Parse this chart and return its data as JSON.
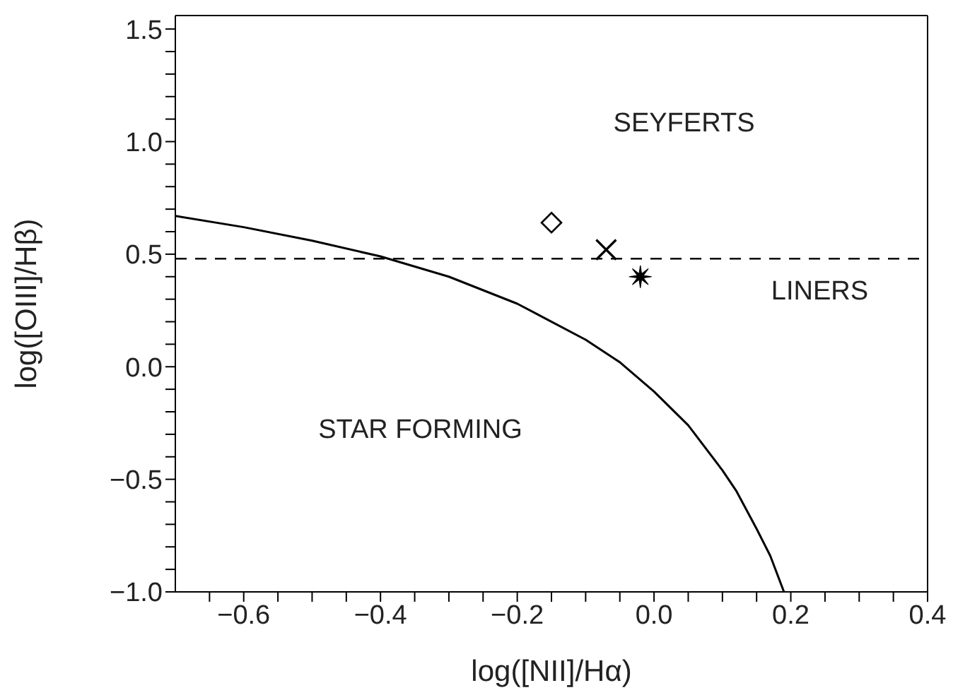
{
  "chart_data": {
    "type": "scatter",
    "xlabel": "log([NII]/Hα)",
    "ylabel": "log([OIII]/Hβ)",
    "xlim": [
      -0.7,
      0.4
    ],
    "ylim": [
      -1.0,
      1.56
    ],
    "xticks": [
      {
        "value": -0.65,
        "label": null
      },
      {
        "value": -0.6,
        "label": "−0.6"
      },
      {
        "value": -0.55,
        "label": null
      },
      {
        "value": -0.5,
        "label": null
      },
      {
        "value": -0.45,
        "label": null
      },
      {
        "value": -0.4,
        "label": "−0.4"
      },
      {
        "value": -0.35,
        "label": null
      },
      {
        "value": -0.3,
        "label": null
      },
      {
        "value": -0.25,
        "label": null
      },
      {
        "value": -0.2,
        "label": "−0.2"
      },
      {
        "value": -0.15,
        "label": null
      },
      {
        "value": -0.1,
        "label": null
      },
      {
        "value": -0.05,
        "label": null
      },
      {
        "value": 0,
        "label": "0.0"
      },
      {
        "value": 0.05,
        "label": null
      },
      {
        "value": 0.1,
        "label": null
      },
      {
        "value": 0.15,
        "label": null
      },
      {
        "value": 0.2,
        "label": "0.2"
      },
      {
        "value": 0.25,
        "label": null
      },
      {
        "value": 0.3,
        "label": null
      },
      {
        "value": 0.35,
        "label": null
      },
      {
        "value": 0.4,
        "label": "0.4"
      }
    ],
    "yticks": [
      {
        "value": -1.0,
        "label": "−1.0"
      },
      {
        "value": -0.9,
        "label": null
      },
      {
        "value": -0.8,
        "label": null
      },
      {
        "value": -0.7,
        "label": null
      },
      {
        "value": -0.6,
        "label": null
      },
      {
        "value": -0.5,
        "label": "−0.5"
      },
      {
        "value": -0.4,
        "label": null
      },
      {
        "value": -0.3,
        "label": null
      },
      {
        "value": -0.2,
        "label": null
      },
      {
        "value": -0.1,
        "label": null
      },
      {
        "value": 0,
        "label": "0.0"
      },
      {
        "value": 0.1,
        "label": null
      },
      {
        "value": 0.2,
        "label": null
      },
      {
        "value": 0.3,
        "label": null
      },
      {
        "value": 0.4,
        "label": null
      },
      {
        "value": 0.5,
        "label": "0.5"
      },
      {
        "value": 0.6,
        "label": null
      },
      {
        "value": 0.7,
        "label": null
      },
      {
        "value": 0.8,
        "label": null
      },
      {
        "value": 0.9,
        "label": null
      },
      {
        "value": 1.0,
        "label": "1.0"
      },
      {
        "value": 1.1,
        "label": null
      },
      {
        "value": 1.2,
        "label": null
      },
      {
        "value": 1.3,
        "label": null
      },
      {
        "value": 1.4,
        "label": null
      },
      {
        "value": 1.5,
        "label": "1.5"
      }
    ],
    "grid": false,
    "legend": false,
    "series": [
      {
        "type": "line",
        "color": "#000000",
        "line_style": "solid",
        "marker": "none",
        "x": [
          -0.7,
          -0.6,
          -0.5,
          -0.4,
          -0.3,
          -0.2,
          -0.1,
          -0.05,
          0.0,
          0.05,
          0.1,
          0.12,
          0.15,
          0.17,
          0.19
        ],
        "values": [
          0.67,
          0.62,
          0.56,
          0.49,
          0.4,
          0.28,
          0.12,
          0.02,
          -0.11,
          -0.26,
          -0.46,
          -0.55,
          -0.72,
          -0.84,
          -1.0
        ]
      },
      {
        "color": "#000000",
        "marker": "diamond",
        "x": [
          -0.15
        ],
        "values": [
          0.64
        ]
      },
      {
        "color": "#000000",
        "marker": "cross",
        "x": [
          -0.07
        ],
        "values": [
          0.52
        ]
      },
      {
        "color": "#000000",
        "marker": "star",
        "x": [
          -0.02
        ],
        "values": [
          0.4
        ]
      }
    ],
    "ref_lines": [
      {
        "axis": "y",
        "value": 0.48,
        "color": "#000000",
        "line_style": "dashed"
      }
    ],
    "annotations": [
      "SEYFERTS",
      "LINERS",
      "STAR FORMING"
    ]
  }
}
